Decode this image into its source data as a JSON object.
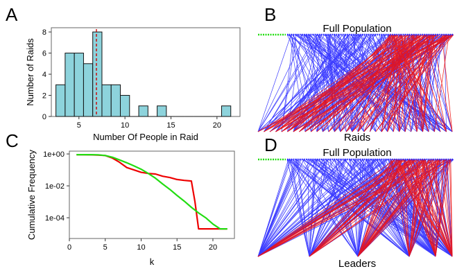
{
  "chart_data": [
    {
      "panel": "A",
      "type": "bar",
      "xlabel": "Number Of People in Raid",
      "ylabel": "Number of Raids",
      "xlim": [
        2,
        22.5
      ],
      "ylim": [
        0,
        8.4
      ],
      "xticks": [
        5,
        10,
        15,
        20
      ],
      "yticks": [
        0,
        2,
        4,
        6,
        8
      ],
      "bin_width": 1,
      "bins": [
        3,
        4,
        5,
        6,
        7,
        8,
        9,
        10,
        11,
        12,
        13,
        14,
        15,
        16,
        17,
        18,
        19,
        20,
        21
      ],
      "values": [
        3,
        6,
        6,
        5,
        8,
        3,
        3,
        2,
        0,
        1,
        0,
        1,
        0,
        0,
        0,
        0,
        0,
        0,
        1
      ],
      "mean_line": 6.9,
      "bar_color": "#8dd3dc",
      "mean_color": "#cc0000"
    },
    {
      "panel": "C",
      "type": "line",
      "scale_y": "log",
      "xlabel": "k",
      "ylabel": "Cumulative Frequency",
      "xlim": [
        0,
        23
      ],
      "ylim": [
        5e-06,
        1.5
      ],
      "xticks": [
        0,
        5,
        10,
        15,
        20
      ],
      "yticks": [
        1,
        0.01,
        0.0001
      ],
      "ytick_labels": [
        "1e+00",
        "1e-02",
        "1e-04"
      ],
      "series": [
        {
          "color": "#ee0000",
          "x": [
            1,
            2,
            3,
            4,
            5,
            6,
            7,
            8,
            9,
            10,
            11,
            12,
            13,
            14,
            15,
            16,
            17,
            17.5,
            18,
            19,
            20,
            21,
            22
          ],
          "y": [
            0.9,
            0.9,
            0.88,
            0.85,
            0.8,
            0.55,
            0.3,
            0.14,
            0.1,
            0.07,
            0.06,
            0.055,
            0.04,
            0.033,
            0.025,
            0.022,
            0.02,
            0.001,
            2e-05,
            2e-05,
            2e-05,
            2e-05,
            2e-05
          ]
        },
        {
          "color": "#22dd11",
          "x": [
            1,
            2,
            3,
            4,
            5,
            6,
            7,
            8,
            9,
            10,
            11,
            12,
            13,
            14,
            15,
            16,
            17,
            18,
            19,
            20,
            21,
            22
          ],
          "y": [
            0.9,
            0.9,
            0.9,
            0.88,
            0.8,
            0.62,
            0.42,
            0.28,
            0.18,
            0.11,
            0.06,
            0.03,
            0.013,
            0.006,
            0.0025,
            0.0011,
            0.00045,
            0.0002,
            0.0001,
            4e-05,
            2e-05,
            2e-05
          ]
        }
      ]
    }
  ],
  "panels": {
    "a": "A",
    "b": "B",
    "c": "C",
    "d": "D"
  },
  "network_b": {
    "top_label": "Full Population",
    "bottom_label": "Raids",
    "top_nodes": 130,
    "bottom_nodes": 34,
    "edges_blue": 240,
    "edges_red": 120,
    "blue": "#1a1aff",
    "red": "#ee1111",
    "green": "#22dd11"
  },
  "network_d": {
    "top_label": "Full Population",
    "bottom_label": "Leaders",
    "top_nodes": 130,
    "bottom_nodes": 6,
    "edges_blue": 260,
    "edges_red": 110,
    "blue": "#1a1aff",
    "red": "#ee1111",
    "green": "#22dd11"
  }
}
